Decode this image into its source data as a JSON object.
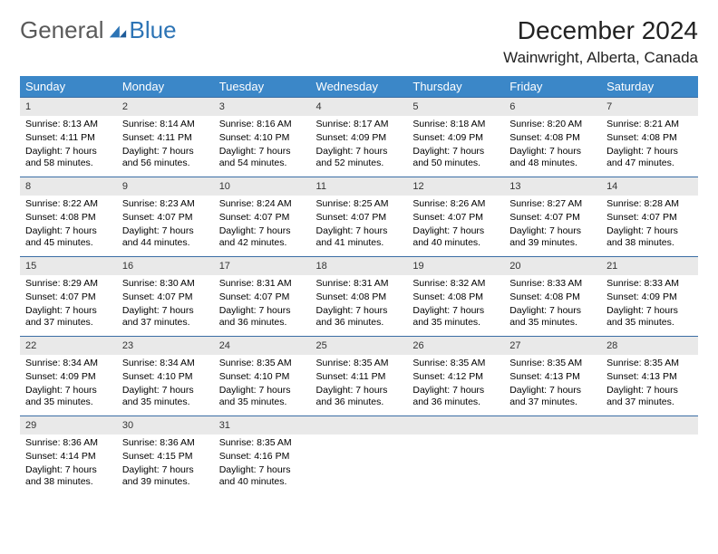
{
  "logo": {
    "general": "General",
    "blue": "Blue"
  },
  "title": "December 2024",
  "location": "Wainwright, Alberta, Canada",
  "colors": {
    "header_bg": "#3b87c8",
    "header_text": "#ffffff",
    "daynum_bg": "#e9e9e9",
    "border": "#3b6ea5",
    "logo_gray": "#5a5a5a",
    "logo_blue": "#2d74b5"
  },
  "weekdays": [
    "Sunday",
    "Monday",
    "Tuesday",
    "Wednesday",
    "Thursday",
    "Friday",
    "Saturday"
  ],
  "days": [
    {
      "n": "1",
      "sunrise": "Sunrise: 8:13 AM",
      "sunset": "Sunset: 4:11 PM",
      "daylight": "Daylight: 7 hours and 58 minutes."
    },
    {
      "n": "2",
      "sunrise": "Sunrise: 8:14 AM",
      "sunset": "Sunset: 4:11 PM",
      "daylight": "Daylight: 7 hours and 56 minutes."
    },
    {
      "n": "3",
      "sunrise": "Sunrise: 8:16 AM",
      "sunset": "Sunset: 4:10 PM",
      "daylight": "Daylight: 7 hours and 54 minutes."
    },
    {
      "n": "4",
      "sunrise": "Sunrise: 8:17 AM",
      "sunset": "Sunset: 4:09 PM",
      "daylight": "Daylight: 7 hours and 52 minutes."
    },
    {
      "n": "5",
      "sunrise": "Sunrise: 8:18 AM",
      "sunset": "Sunset: 4:09 PM",
      "daylight": "Daylight: 7 hours and 50 minutes."
    },
    {
      "n": "6",
      "sunrise": "Sunrise: 8:20 AM",
      "sunset": "Sunset: 4:08 PM",
      "daylight": "Daylight: 7 hours and 48 minutes."
    },
    {
      "n": "7",
      "sunrise": "Sunrise: 8:21 AM",
      "sunset": "Sunset: 4:08 PM",
      "daylight": "Daylight: 7 hours and 47 minutes."
    },
    {
      "n": "8",
      "sunrise": "Sunrise: 8:22 AM",
      "sunset": "Sunset: 4:08 PM",
      "daylight": "Daylight: 7 hours and 45 minutes."
    },
    {
      "n": "9",
      "sunrise": "Sunrise: 8:23 AM",
      "sunset": "Sunset: 4:07 PM",
      "daylight": "Daylight: 7 hours and 44 minutes."
    },
    {
      "n": "10",
      "sunrise": "Sunrise: 8:24 AM",
      "sunset": "Sunset: 4:07 PM",
      "daylight": "Daylight: 7 hours and 42 minutes."
    },
    {
      "n": "11",
      "sunrise": "Sunrise: 8:25 AM",
      "sunset": "Sunset: 4:07 PM",
      "daylight": "Daylight: 7 hours and 41 minutes."
    },
    {
      "n": "12",
      "sunrise": "Sunrise: 8:26 AM",
      "sunset": "Sunset: 4:07 PM",
      "daylight": "Daylight: 7 hours and 40 minutes."
    },
    {
      "n": "13",
      "sunrise": "Sunrise: 8:27 AM",
      "sunset": "Sunset: 4:07 PM",
      "daylight": "Daylight: 7 hours and 39 minutes."
    },
    {
      "n": "14",
      "sunrise": "Sunrise: 8:28 AM",
      "sunset": "Sunset: 4:07 PM",
      "daylight": "Daylight: 7 hours and 38 minutes."
    },
    {
      "n": "15",
      "sunrise": "Sunrise: 8:29 AM",
      "sunset": "Sunset: 4:07 PM",
      "daylight": "Daylight: 7 hours and 37 minutes."
    },
    {
      "n": "16",
      "sunrise": "Sunrise: 8:30 AM",
      "sunset": "Sunset: 4:07 PM",
      "daylight": "Daylight: 7 hours and 37 minutes."
    },
    {
      "n": "17",
      "sunrise": "Sunrise: 8:31 AM",
      "sunset": "Sunset: 4:07 PM",
      "daylight": "Daylight: 7 hours and 36 minutes."
    },
    {
      "n": "18",
      "sunrise": "Sunrise: 8:31 AM",
      "sunset": "Sunset: 4:08 PM",
      "daylight": "Daylight: 7 hours and 36 minutes."
    },
    {
      "n": "19",
      "sunrise": "Sunrise: 8:32 AM",
      "sunset": "Sunset: 4:08 PM",
      "daylight": "Daylight: 7 hours and 35 minutes."
    },
    {
      "n": "20",
      "sunrise": "Sunrise: 8:33 AM",
      "sunset": "Sunset: 4:08 PM",
      "daylight": "Daylight: 7 hours and 35 minutes."
    },
    {
      "n": "21",
      "sunrise": "Sunrise: 8:33 AM",
      "sunset": "Sunset: 4:09 PM",
      "daylight": "Daylight: 7 hours and 35 minutes."
    },
    {
      "n": "22",
      "sunrise": "Sunrise: 8:34 AM",
      "sunset": "Sunset: 4:09 PM",
      "daylight": "Daylight: 7 hours and 35 minutes."
    },
    {
      "n": "23",
      "sunrise": "Sunrise: 8:34 AM",
      "sunset": "Sunset: 4:10 PM",
      "daylight": "Daylight: 7 hours and 35 minutes."
    },
    {
      "n": "24",
      "sunrise": "Sunrise: 8:35 AM",
      "sunset": "Sunset: 4:10 PM",
      "daylight": "Daylight: 7 hours and 35 minutes."
    },
    {
      "n": "25",
      "sunrise": "Sunrise: 8:35 AM",
      "sunset": "Sunset: 4:11 PM",
      "daylight": "Daylight: 7 hours and 36 minutes."
    },
    {
      "n": "26",
      "sunrise": "Sunrise: 8:35 AM",
      "sunset": "Sunset: 4:12 PM",
      "daylight": "Daylight: 7 hours and 36 minutes."
    },
    {
      "n": "27",
      "sunrise": "Sunrise: 8:35 AM",
      "sunset": "Sunset: 4:13 PM",
      "daylight": "Daylight: 7 hours and 37 minutes."
    },
    {
      "n": "28",
      "sunrise": "Sunrise: 8:35 AM",
      "sunset": "Sunset: 4:13 PM",
      "daylight": "Daylight: 7 hours and 37 minutes."
    },
    {
      "n": "29",
      "sunrise": "Sunrise: 8:36 AM",
      "sunset": "Sunset: 4:14 PM",
      "daylight": "Daylight: 7 hours and 38 minutes."
    },
    {
      "n": "30",
      "sunrise": "Sunrise: 8:36 AM",
      "sunset": "Sunset: 4:15 PM",
      "daylight": "Daylight: 7 hours and 39 minutes."
    },
    {
      "n": "31",
      "sunrise": "Sunrise: 8:35 AM",
      "sunset": "Sunset: 4:16 PM",
      "daylight": "Daylight: 7 hours and 40 minutes."
    }
  ]
}
